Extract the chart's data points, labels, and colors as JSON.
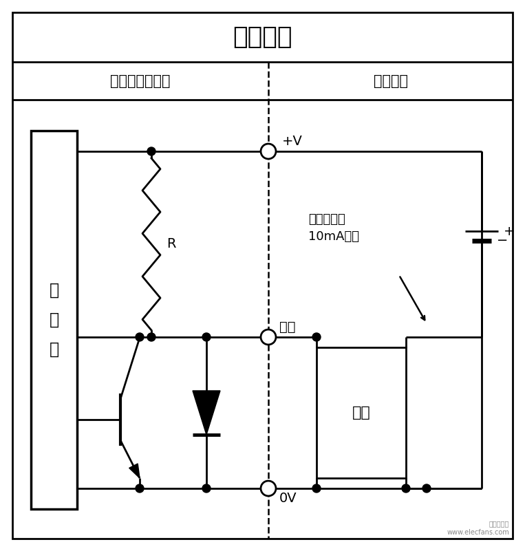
{
  "title": "电压输出",
  "subtitle_left": "旋转编码器电路",
  "subtitle_right": "外部连接",
  "main_circuit_label": "主\n电\n路",
  "resistor_label": "R",
  "output_label": "输出",
  "plus_v_label": "+V",
  "zero_v_label": "0V",
  "current_label": "流出电流：\n10mA以下",
  "load_label": "负载",
  "plus_label": "+",
  "minus_label": "−",
  "bg_color": "#ffffff",
  "line_color": "#000000",
  "fig_width": 7.63,
  "fig_height": 8.01,
  "dpi": 100
}
